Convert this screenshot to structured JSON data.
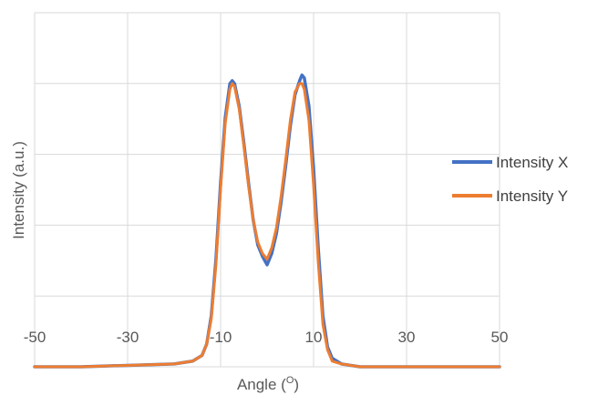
{
  "chart_data": {
    "type": "line",
    "title": "",
    "xlabel": "Angle (",
    "xlabel_sup": "O",
    "xlabel_close": ")",
    "ylabel": "Intensity (a.u.)",
    "xlim": [
      -50,
      50
    ],
    "ylim": [
      0,
      1.25
    ],
    "xticks": [
      -50,
      -30,
      -10,
      10,
      30,
      50
    ],
    "xtick_labels": [
      "-50",
      "-30",
      "-10",
      "10",
      "30",
      "50"
    ],
    "yticks": [
      0,
      0.25,
      0.5,
      0.75,
      1.0,
      1.25
    ],
    "grid": true,
    "legend": "right",
    "x": [
      -50,
      -40,
      -30,
      -20,
      -16,
      -14,
      -13,
      -12,
      -11,
      -10,
      -9,
      -8,
      -7.5,
      -7,
      -6,
      -5,
      -4,
      -3,
      -2,
      -1,
      0,
      1,
      2,
      3,
      4,
      5,
      6,
      7,
      7.5,
      8,
      9,
      10,
      11,
      12,
      13,
      14,
      16,
      20,
      30,
      40,
      50
    ],
    "series": [
      {
        "name": "Intensity X",
        "color": "#4472C4",
        "values": [
          0.0,
          0.0,
          0.005,
          0.01,
          0.02,
          0.04,
          0.08,
          0.18,
          0.38,
          0.65,
          0.88,
          1.0,
          1.01,
          1.0,
          0.92,
          0.79,
          0.65,
          0.52,
          0.43,
          0.39,
          0.36,
          0.4,
          0.47,
          0.58,
          0.71,
          0.85,
          0.96,
          1.01,
          1.03,
          1.02,
          0.92,
          0.7,
          0.42,
          0.18,
          0.07,
          0.03,
          0.01,
          0.0,
          0.0,
          0.0,
          0.0
        ]
      },
      {
        "name": "Intensity Y",
        "color": "#ED7D31",
        "values": [
          0.0,
          0.0,
          0.005,
          0.01,
          0.02,
          0.04,
          0.08,
          0.17,
          0.36,
          0.63,
          0.86,
          0.98,
          1.0,
          0.99,
          0.91,
          0.78,
          0.64,
          0.52,
          0.44,
          0.4,
          0.38,
          0.42,
          0.49,
          0.6,
          0.73,
          0.87,
          0.97,
          1.0,
          1.0,
          0.98,
          0.87,
          0.64,
          0.37,
          0.15,
          0.06,
          0.02,
          0.01,
          0.0,
          0.0,
          0.0,
          0.0
        ]
      }
    ]
  }
}
